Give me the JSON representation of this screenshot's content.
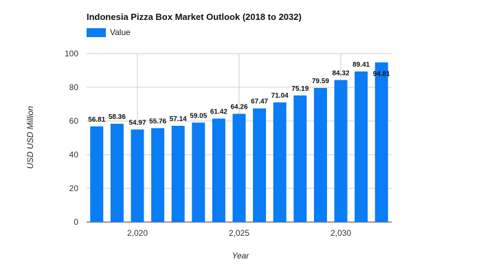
{
  "chart_data": {
    "type": "bar",
    "title": "Indonesia Pizza Box Market Outlook (2018 to 2032)",
    "xlabel": "Year",
    "ylabel": "USD USD Million",
    "legend": [
      {
        "name": "Value",
        "color": "#0a7cf4"
      }
    ],
    "x": [
      2018,
      2019,
      2020,
      2021,
      2022,
      2023,
      2024,
      2025,
      2026,
      2027,
      2028,
      2029,
      2030,
      2031,
      2032
    ],
    "values": [
      56.81,
      58.36,
      54.97,
      55.76,
      57.14,
      59.05,
      61.42,
      64.26,
      67.47,
      71.04,
      75.19,
      79.59,
      84.32,
      89.41,
      94.81
    ],
    "value_labels": [
      "56.81",
      "58.36",
      "54.97",
      "55.76",
      "57.14",
      "59.05",
      "61.42",
      "64.26",
      "67.47",
      "71.04",
      "75.19",
      "79.59",
      "84.32",
      "89.41",
      "94.81"
    ],
    "ylim": [
      0,
      100
    ],
    "yticks": [
      0,
      20,
      40,
      60,
      80,
      100
    ],
    "ytick_labels": [
      "0",
      "20",
      "40",
      "60",
      "80",
      "100"
    ],
    "xticks": [
      2020,
      2025,
      2030
    ],
    "xtick_labels": [
      "2,020",
      "2,025",
      "2,030"
    ],
    "grid": true,
    "legend_position": "top-left"
  }
}
